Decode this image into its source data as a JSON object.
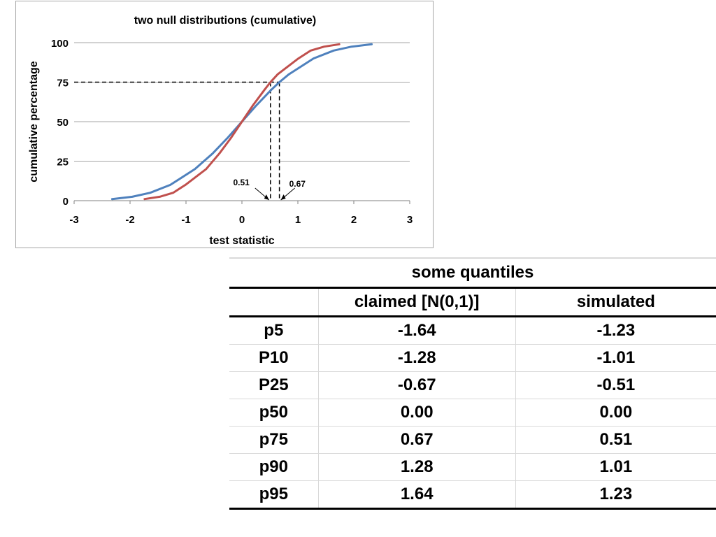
{
  "chart_data": {
    "type": "line",
    "title": "two null distributions (cumulative)",
    "xlabel": "test statistic",
    "ylabel": "cumulative percentage",
    "xlim": [
      -3,
      3
    ],
    "ylim": [
      0,
      100
    ],
    "x_ticks": [
      "-3",
      "-2",
      "-1",
      "0",
      "1",
      "2",
      "3"
    ],
    "y_ticks": [
      "0",
      "25",
      "50",
      "75",
      "100"
    ],
    "grid": "horizontal",
    "colors": {
      "blue": "#4f81bd",
      "red": "#c0504d"
    },
    "series": [
      {
        "color": "#4f81bd",
        "x": [
          -2.32,
          -1.96,
          -1.64,
          -1.28,
          -0.84,
          -0.52,
          -0.25,
          0,
          0.25,
          0.52,
          0.67,
          0.84,
          1.28,
          1.64,
          1.96,
          2.32
        ],
        "y": [
          1,
          2.5,
          5,
          10,
          20,
          30,
          40,
          50,
          60,
          70,
          75,
          80,
          90,
          95,
          97.5,
          99
        ]
      },
      {
        "color": "#c0504d",
        "x": [
          -1.74,
          -1.47,
          -1.23,
          -1.01,
          -0.64,
          -0.4,
          -0.19,
          0,
          0.19,
          0.4,
          0.51,
          0.64,
          1.01,
          1.23,
          1.47,
          1.74
        ],
        "y": [
          1,
          2.5,
          5,
          10,
          20,
          30,
          40,
          50,
          60,
          70,
          75,
          80,
          90,
          95,
          97.5,
          99
        ]
      }
    ],
    "reference": {
      "y": 75,
      "x_values": [
        0.51,
        0.67
      ]
    },
    "annotations": [
      {
        "text": "0.51",
        "x": 0.51
      },
      {
        "text": "0.67",
        "x": 0.67
      }
    ]
  },
  "table": {
    "caption": "some quantiles",
    "headers": [
      "",
      "claimed [N(0,1)]",
      "simulated"
    ],
    "rows": [
      [
        "p5",
        "-1.64",
        "-1.23"
      ],
      [
        "P10",
        "-1.28",
        "-1.01"
      ],
      [
        "P25",
        "-0.67",
        "-0.51"
      ],
      [
        "p50",
        "0.00",
        "0.00"
      ],
      [
        "p75",
        "0.67",
        "0.51"
      ],
      [
        "p90",
        "1.28",
        "1.01"
      ],
      [
        "p95",
        "1.64",
        "1.23"
      ]
    ]
  }
}
